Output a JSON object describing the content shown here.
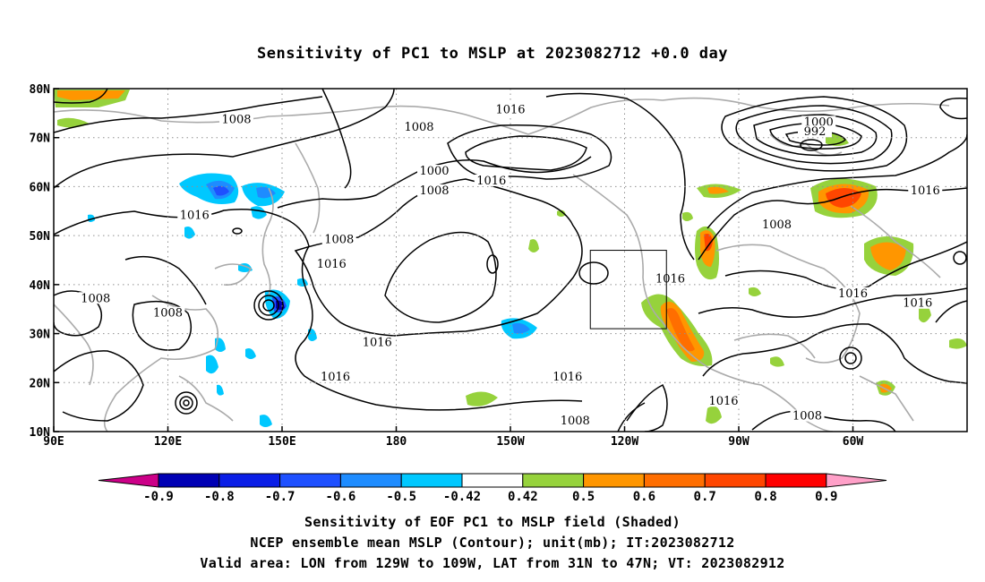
{
  "title": "Sensitivity of PC1 to MSLP at 2023082712 +0.0 day",
  "map": {
    "lon_labels": [
      "90E",
      "120E",
      "150E",
      "180",
      "150W",
      "120W",
      "90W",
      "60W"
    ],
    "lat_labels": [
      "80N",
      "70N",
      "60N",
      "50N",
      "40N",
      "30N",
      "20N",
      "10N"
    ],
    "lon_range": [
      90,
      330
    ],
    "lat_range": [
      10,
      80
    ],
    "valid_box": {
      "lon_w": 231,
      "lon_e": 251,
      "lat_s": 31,
      "lat_n": 47
    },
    "contour_labels": [
      {
        "text": "1008",
        "lon": 138,
        "lat": 73.5
      },
      {
        "text": "1016",
        "lon": 210,
        "lat": 75.5
      },
      {
        "text": "1008",
        "lon": 186,
        "lat": 72
      },
      {
        "text": "1000",
        "lon": 291,
        "lat": 73
      },
      {
        "text": "992",
        "lon": 290,
        "lat": 71
      },
      {
        "text": "1000",
        "lon": 190,
        "lat": 63
      },
      {
        "text": "1008",
        "lon": 190,
        "lat": 59
      },
      {
        "text": "1016",
        "lon": 205,
        "lat": 61
      },
      {
        "text": "1016",
        "lon": 127,
        "lat": 54
      },
      {
        "text": "1008",
        "lon": 280,
        "lat": 52
      },
      {
        "text": "1016",
        "lon": 319,
        "lat": 59
      },
      {
        "text": "1008",
        "lon": 165,
        "lat": 49
      },
      {
        "text": "1016",
        "lon": 163,
        "lat": 44
      },
      {
        "text": "1016",
        "lon": 252,
        "lat": 41
      },
      {
        "text": "1016",
        "lon": 300,
        "lat": 38
      },
      {
        "text": "1016",
        "lon": 317,
        "lat": 36
      },
      {
        "text": "1008",
        "lon": 101,
        "lat": 37
      },
      {
        "text": "1008",
        "lon": 120,
        "lat": 34
      },
      {
        "text": "1016",
        "lon": 175,
        "lat": 28
      },
      {
        "text": "1016",
        "lon": 164,
        "lat": 21
      },
      {
        "text": "1016",
        "lon": 225,
        "lat": 21
      },
      {
        "text": "1016",
        "lon": 266,
        "lat": 16
      },
      {
        "text": "1008",
        "lon": 227,
        "lat": 12
      },
      {
        "text": "1008",
        "lon": 288,
        "lat": 13
      }
    ]
  },
  "colorbar": {
    "labels": [
      "-0.9",
      "-0.8",
      "-0.7",
      "-0.6",
      "-0.5",
      "-0.42",
      "0.42",
      "0.5",
      "0.6",
      "0.7",
      "0.8",
      "0.9"
    ],
    "colors": [
      "#0000b4",
      "#0a1ee6",
      "#1e50ff",
      "#1e8cff",
      "#00c8ff",
      "#ffffff",
      "#96d23c",
      "#ff9600",
      "#ff6e00",
      "#ff4600",
      "#ff0000"
    ],
    "low_end_color": "#cc0088",
    "high_end_color": "#ffa0c8"
  },
  "caption": {
    "line1": "Sensitivity of EOF PC1 to MSLP field (Shaded)",
    "line2": "NCEP ensemble mean MSLP (Contour); unit(mb); IT:2023082712",
    "line3": "Valid area: LON from 129W to 109W, LAT from 31N to 47N; VT: 2023082912"
  }
}
